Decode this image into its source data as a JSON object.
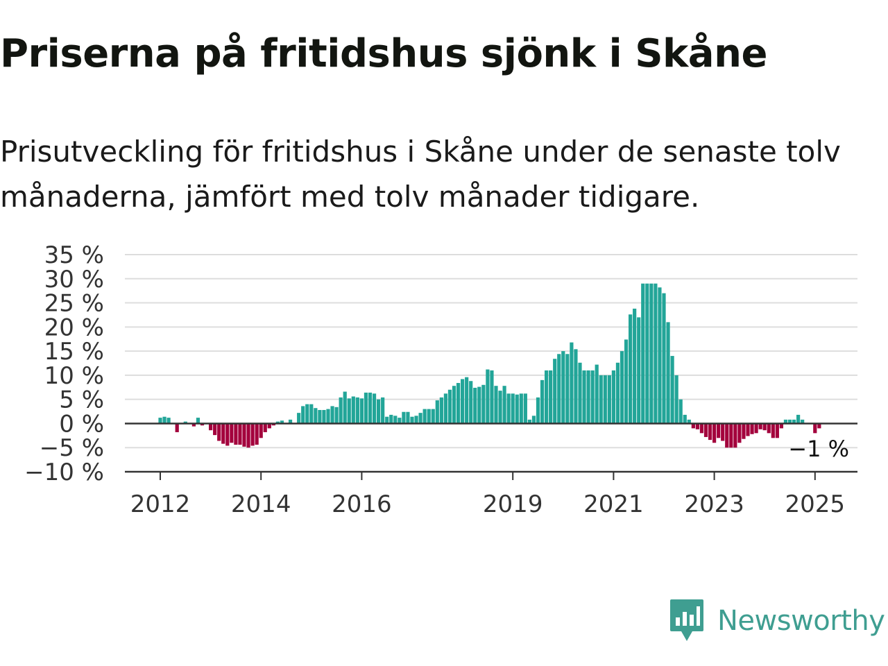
{
  "title": "Priserna på fritidshus sjönk i Skåne",
  "subtitle": "Prisutveckling för fritidshus i Skåne under de senaste tolv månaderna, jämfört med tolv månader tidigare.",
  "brand": {
    "name": "Newsworthy",
    "icon": "newsworthy-logo-icon",
    "color": "#3f9e91"
  },
  "chart_data": {
    "type": "bar",
    "title": "Priserna på fritidshus sjönk i Skåne",
    "subtitle": "Prisutveckling för fritidshus i Skåne under de senaste tolv månaderna, jämfört med tolv månader tidigare.",
    "xlabel": "",
    "ylabel": "",
    "ylim": [
      -10,
      35
    ],
    "grid": true,
    "legend": "none",
    "colors": {
      "positive": "#22a598",
      "negative": "#a3003c"
    },
    "yticks": [
      {
        "value": 35,
        "label": "35 %"
      },
      {
        "value": 30,
        "label": "30 %"
      },
      {
        "value": 25,
        "label": "25 %"
      },
      {
        "value": 20,
        "label": "20 %"
      },
      {
        "value": 15,
        "label": "15 %"
      },
      {
        "value": 10,
        "label": "10 %"
      },
      {
        "value": 5,
        "label": "5 %"
      },
      {
        "value": 0,
        "label": "0 %"
      },
      {
        "value": -5,
        "label": "−5 %"
      },
      {
        "value": -10,
        "label": "−10 %"
      }
    ],
    "xticks": [
      {
        "date": "2012-01",
        "label": "2012"
      },
      {
        "date": "2014-01",
        "label": "2014"
      },
      {
        "date": "2016-01",
        "label": "2016"
      },
      {
        "date": "2019-01",
        "label": "2019"
      },
      {
        "date": "2021-01",
        "label": "2021"
      },
      {
        "date": "2023-01",
        "label": "2023"
      },
      {
        "date": "2025-01",
        "label": "2025"
      }
    ],
    "start_month": "2012-01",
    "end_month": "2025-08",
    "last_value_label": "−1 %",
    "values": [
      1.2,
      1.4,
      1.2,
      0.0,
      -1.8,
      0.0,
      0.4,
      0.0,
      -0.6,
      1.2,
      -0.4,
      0.0,
      -1.4,
      -2.4,
      -3.6,
      -4.2,
      -4.6,
      -4.0,
      -4.4,
      -4.4,
      -4.8,
      -5.0,
      -4.6,
      -4.4,
      -3.0,
      -1.8,
      -1.0,
      -0.4,
      0.4,
      0.6,
      0.0,
      0.8,
      0.0,
      2.2,
      3.6,
      4.0,
      4.0,
      3.2,
      2.8,
      2.8,
      3.0,
      3.6,
      3.4,
      5.4,
      6.6,
      5.2,
      5.6,
      5.4,
      5.2,
      6.4,
      6.4,
      6.2,
      5.0,
      5.4,
      1.4,
      1.8,
      1.6,
      1.2,
      2.4,
      2.4,
      1.4,
      1.6,
      2.2,
      3.0,
      3.0,
      3.0,
      4.8,
      5.4,
      6.2,
      7.0,
      7.8,
      8.4,
      9.2,
      9.6,
      8.8,
      7.4,
      7.6,
      8.0,
      11.2,
      11.0,
      7.8,
      6.8,
      7.8,
      6.2,
      6.2,
      6.0,
      6.2,
      6.2,
      0.8,
      1.6,
      5.4,
      9.0,
      11.0,
      11.0,
      13.4,
      14.4,
      15.0,
      14.4,
      16.8,
      15.4,
      12.6,
      11.0,
      11.0,
      11.0,
      12.2,
      10.0,
      10.0,
      10.0,
      11.0,
      12.6,
      15.0,
      17.4,
      22.6,
      23.8,
      22.0,
      29.0,
      29.0,
      29.0,
      29.0,
      28.2,
      27.0,
      21.0,
      14.0,
      10.0,
      5.0,
      1.8,
      0.8,
      -1.0,
      -1.2,
      -2.0,
      -2.8,
      -3.4,
      -4.0,
      -3.0,
      -3.6,
      -5.0,
      -5.0,
      -5.0,
      -4.0,
      -3.2,
      -2.6,
      -2.2,
      -2.0,
      -1.2,
      -1.4,
      -2.0,
      -3.0,
      -3.0,
      -1.0,
      0.8,
      0.8,
      0.8,
      1.8,
      0.8,
      0.0,
      0.0,
      -2.0,
      -1.0
    ]
  }
}
